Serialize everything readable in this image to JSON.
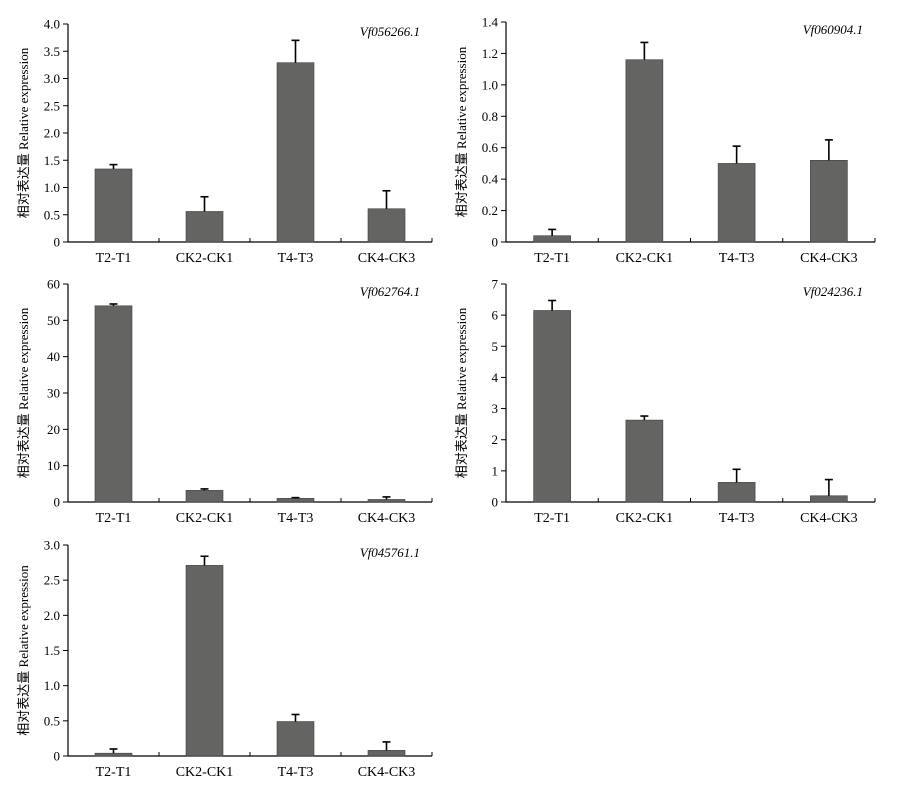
{
  "colors": {
    "bar": "#646462",
    "axis": "#000000"
  },
  "charts": [
    {
      "type": "bar",
      "title": "",
      "annotation": "Vf056266.1",
      "ylabel": "相对表达量 Relative expression",
      "xlabel": "",
      "categories": [
        "T2-T1",
        "CK2-CK1",
        "T4-T3",
        "CK4-CK3"
      ],
      "values": [
        1.34,
        0.56,
        3.29,
        0.61
      ],
      "errors": [
        0.08,
        0.27,
        0.41,
        0.33
      ],
      "ylim": [
        0,
        4.0
      ],
      "yticks": [
        "0",
        "0.5",
        "1.0",
        "1.5",
        "2.0",
        "2.5",
        "3.0",
        "3.5",
        "4.0"
      ]
    },
    {
      "type": "bar",
      "title": "",
      "annotation": "Vf060904.1",
      "ylabel": "相对表达量 Relative expression",
      "xlabel": "",
      "categories": [
        "T2-T1",
        "CK2-CK1",
        "T4-T3",
        "CK4-CK3"
      ],
      "values": [
        0.04,
        1.16,
        0.5,
        0.52
      ],
      "errors": [
        0.04,
        0.11,
        0.11,
        0.13
      ],
      "ylim": [
        0,
        1.4
      ],
      "yticks": [
        "0",
        "0.2",
        "0.4",
        "0.6",
        "0.8",
        "1.0",
        "1.2",
        "1.4"
      ]
    },
    {
      "type": "bar",
      "title": "",
      "annotation": "Vf062764.1",
      "ylabel": "相对表达量 Relative expression",
      "xlabel": "",
      "categories": [
        "T2-T1",
        "CK2-CK1",
        "T4-T3",
        "CK4-CK3"
      ],
      "values": [
        54.0,
        3.2,
        1.0,
        0.7
      ],
      "errors": [
        0.5,
        0.4,
        0.2,
        0.7
      ],
      "ylim": [
        0,
        60
      ],
      "yticks": [
        "0",
        "10",
        "20",
        "30",
        "40",
        "50",
        "60"
      ]
    },
    {
      "type": "bar",
      "title": "",
      "annotation": "Vf024236.1",
      "ylabel": "相对表达量 Relative expression",
      "xlabel": "",
      "categories": [
        "T2-T1",
        "CK2-CK1",
        "T4-T3",
        "CK4-CK3"
      ],
      "values": [
        6.15,
        2.63,
        0.63,
        0.2
      ],
      "errors": [
        0.32,
        0.13,
        0.42,
        0.52
      ],
      "ylim": [
        0,
        7
      ],
      "yticks": [
        "0",
        "1",
        "2",
        "3",
        "4",
        "5",
        "6",
        "7"
      ]
    },
    {
      "type": "bar",
      "title": "",
      "annotation": "Vf045761.1",
      "ylabel": "相对表达量 Relative expression",
      "xlabel": "",
      "categories": [
        "T2-T1",
        "CK2-CK1",
        "T4-T3",
        "CK4-CK3"
      ],
      "values": [
        0.04,
        2.71,
        0.49,
        0.08
      ],
      "errors": [
        0.06,
        0.13,
        0.1,
        0.12
      ],
      "ylim": [
        0,
        3.0
      ],
      "yticks": [
        "0",
        "0.5",
        "1.0",
        "1.5",
        "2.0",
        "2.5",
        "3.0"
      ]
    }
  ]
}
